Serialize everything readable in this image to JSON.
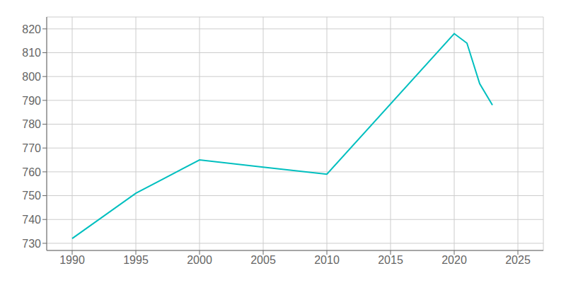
{
  "chart_data": {
    "type": "line",
    "x": [
      1990,
      1995,
      2000,
      2005,
      2010,
      2020,
      2021,
      2022,
      2023
    ],
    "values": [
      732,
      751,
      765,
      762,
      759,
      818,
      814,
      797,
      788
    ],
    "color": "#00BFBF",
    "xlim": [
      1988,
      2027
    ],
    "ylim": [
      727,
      825
    ],
    "xticks": [
      1990,
      1995,
      2000,
      2005,
      2010,
      2015,
      2020,
      2025
    ],
    "yticks": [
      730,
      740,
      750,
      760,
      770,
      780,
      790,
      800,
      810,
      820
    ],
    "grid": true
  }
}
